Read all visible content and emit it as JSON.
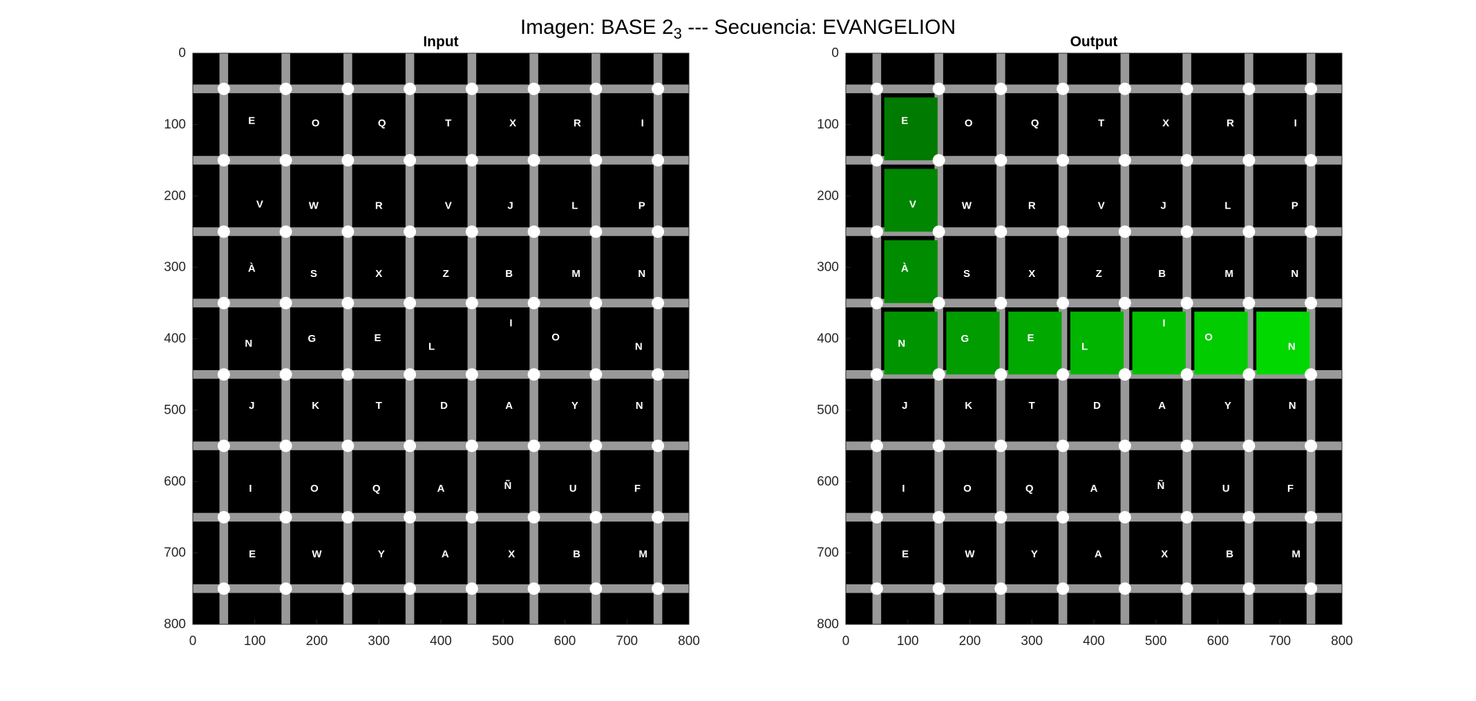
{
  "suptitle": {
    "prefix": "Imagen: BASE 2",
    "subscript": "3",
    "suffix": " --- Secuencia: EVANGELION"
  },
  "chart_data": [
    {
      "type": "image-grid",
      "title": "Input",
      "xlim": [
        0,
        800
      ],
      "ylim": [
        800,
        0
      ],
      "xticks": [
        0,
        100,
        200,
        300,
        400,
        500,
        600,
        700,
        800
      ],
      "yticks": [
        0,
        100,
        200,
        300,
        400,
        500,
        600,
        700,
        800
      ],
      "grid_lines_at": [
        50,
        150,
        250,
        350,
        450,
        550,
        650,
        750
      ],
      "letters": [
        {
          "char": "E",
          "x": 95,
          "y": 95
        },
        {
          "char": "O",
          "x": 198,
          "y": 98
        },
        {
          "char": "Q",
          "x": 305,
          "y": 98
        },
        {
          "char": "T",
          "x": 412,
          "y": 98
        },
        {
          "char": "X",
          "x": 516,
          "y": 98
        },
        {
          "char": "R",
          "x": 620,
          "y": 98
        },
        {
          "char": "I",
          "x": 725,
          "y": 98
        },
        {
          "char": "V",
          "x": 108,
          "y": 212
        },
        {
          "char": "W",
          "x": 195,
          "y": 214
        },
        {
          "char": "R",
          "x": 300,
          "y": 214
        },
        {
          "char": "V",
          "x": 412,
          "y": 214
        },
        {
          "char": "J",
          "x": 512,
          "y": 214
        },
        {
          "char": "L",
          "x": 616,
          "y": 214
        },
        {
          "char": "P",
          "x": 724,
          "y": 214
        },
        {
          "char": "À",
          "x": 95,
          "y": 302
        },
        {
          "char": "S",
          "x": 195,
          "y": 309
        },
        {
          "char": "X",
          "x": 300,
          "y": 309
        },
        {
          "char": "Z",
          "x": 408,
          "y": 309
        },
        {
          "char": "B",
          "x": 510,
          "y": 309
        },
        {
          "char": "M",
          "x": 618,
          "y": 309
        },
        {
          "char": "N",
          "x": 724,
          "y": 309
        },
        {
          "char": "N",
          "x": 90,
          "y": 407
        },
        {
          "char": "G",
          "x": 192,
          "y": 400
        },
        {
          "char": "E",
          "x": 298,
          "y": 399
        },
        {
          "char": "L",
          "x": 385,
          "y": 411
        },
        {
          "char": "I",
          "x": 513,
          "y": 378
        },
        {
          "char": "O",
          "x": 585,
          "y": 398
        },
        {
          "char": "N",
          "x": 719,
          "y": 411
        },
        {
          "char": "J",
          "x": 95,
          "y": 494
        },
        {
          "char": "K",
          "x": 198,
          "y": 494
        },
        {
          "char": "T",
          "x": 300,
          "y": 494
        },
        {
          "char": "D",
          "x": 405,
          "y": 494
        },
        {
          "char": "A",
          "x": 510,
          "y": 494
        },
        {
          "char": "Y",
          "x": 616,
          "y": 494
        },
        {
          "char": "N",
          "x": 720,
          "y": 494
        },
        {
          "char": "I",
          "x": 93,
          "y": 610
        },
        {
          "char": "O",
          "x": 196,
          "y": 610
        },
        {
          "char": "Q",
          "x": 296,
          "y": 610
        },
        {
          "char": "A",
          "x": 400,
          "y": 610
        },
        {
          "char": "Ñ",
          "x": 508,
          "y": 606
        },
        {
          "char": "U",
          "x": 613,
          "y": 610
        },
        {
          "char": "F",
          "x": 717,
          "y": 610
        },
        {
          "char": "E",
          "x": 96,
          "y": 702
        },
        {
          "char": "W",
          "x": 200,
          "y": 702
        },
        {
          "char": "Y",
          "x": 304,
          "y": 702
        },
        {
          "char": "A",
          "x": 407,
          "y": 702
        },
        {
          "char": "X",
          "x": 514,
          "y": 702
        },
        {
          "char": "B",
          "x": 619,
          "y": 702
        },
        {
          "char": "M",
          "x": 726,
          "y": 702
        }
      ],
      "highlights": []
    },
    {
      "type": "image-grid",
      "title": "Output",
      "xlim": [
        0,
        800
      ],
      "ylim": [
        800,
        0
      ],
      "xticks": [
        0,
        100,
        200,
        300,
        400,
        500,
        600,
        700,
        800
      ],
      "yticks": [
        0,
        100,
        200,
        300,
        400,
        500,
        600,
        700,
        800
      ],
      "grid_lines_at": [
        50,
        150,
        250,
        350,
        450,
        550,
        650,
        750
      ],
      "letters": [
        {
          "char": "E",
          "x": 95,
          "y": 95
        },
        {
          "char": "O",
          "x": 198,
          "y": 98
        },
        {
          "char": "Q",
          "x": 305,
          "y": 98
        },
        {
          "char": "T",
          "x": 412,
          "y": 98
        },
        {
          "char": "X",
          "x": 516,
          "y": 98
        },
        {
          "char": "R",
          "x": 620,
          "y": 98
        },
        {
          "char": "I",
          "x": 725,
          "y": 98
        },
        {
          "char": "V",
          "x": 108,
          "y": 212
        },
        {
          "char": "W",
          "x": 195,
          "y": 214
        },
        {
          "char": "R",
          "x": 300,
          "y": 214
        },
        {
          "char": "V",
          "x": 412,
          "y": 214
        },
        {
          "char": "J",
          "x": 512,
          "y": 214
        },
        {
          "char": "L",
          "x": 616,
          "y": 214
        },
        {
          "char": "P",
          "x": 724,
          "y": 214
        },
        {
          "char": "À",
          "x": 95,
          "y": 302
        },
        {
          "char": "S",
          "x": 195,
          "y": 309
        },
        {
          "char": "X",
          "x": 300,
          "y": 309
        },
        {
          "char": "Z",
          "x": 408,
          "y": 309
        },
        {
          "char": "B",
          "x": 510,
          "y": 309
        },
        {
          "char": "M",
          "x": 618,
          "y": 309
        },
        {
          "char": "N",
          "x": 724,
          "y": 309
        },
        {
          "char": "N",
          "x": 90,
          "y": 407
        },
        {
          "char": "G",
          "x": 192,
          "y": 400
        },
        {
          "char": "E",
          "x": 298,
          "y": 399
        },
        {
          "char": "L",
          "x": 385,
          "y": 411
        },
        {
          "char": "I",
          "x": 513,
          "y": 378
        },
        {
          "char": "O",
          "x": 585,
          "y": 398
        },
        {
          "char": "N",
          "x": 719,
          "y": 411
        },
        {
          "char": "J",
          "x": 95,
          "y": 494
        },
        {
          "char": "K",
          "x": 198,
          "y": 494
        },
        {
          "char": "T",
          "x": 300,
          "y": 494
        },
        {
          "char": "D",
          "x": 405,
          "y": 494
        },
        {
          "char": "A",
          "x": 510,
          "y": 494
        },
        {
          "char": "Y",
          "x": 616,
          "y": 494
        },
        {
          "char": "N",
          "x": 720,
          "y": 494
        },
        {
          "char": "I",
          "x": 93,
          "y": 610
        },
        {
          "char": "O",
          "x": 196,
          "y": 610
        },
        {
          "char": "Q",
          "x": 296,
          "y": 610
        },
        {
          "char": "A",
          "x": 400,
          "y": 610
        },
        {
          "char": "Ñ",
          "x": 508,
          "y": 606
        },
        {
          "char": "U",
          "x": 613,
          "y": 610
        },
        {
          "char": "F",
          "x": 717,
          "y": 610
        },
        {
          "char": "E",
          "x": 96,
          "y": 702
        },
        {
          "char": "W",
          "x": 200,
          "y": 702
        },
        {
          "char": "Y",
          "x": 304,
          "y": 702
        },
        {
          "char": "A",
          "x": 407,
          "y": 702
        },
        {
          "char": "X",
          "x": 514,
          "y": 702
        },
        {
          "char": "B",
          "x": 619,
          "y": 702
        },
        {
          "char": "M",
          "x": 726,
          "y": 702
        }
      ],
      "highlights": [
        {
          "char": "E",
          "x0": 62,
          "x1": 148,
          "y0": 62,
          "y1": 150,
          "color": "#007a00"
        },
        {
          "char": "V",
          "x0": 62,
          "x1": 148,
          "y0": 162,
          "y1": 250,
          "color": "#008600"
        },
        {
          "char": "À",
          "x0": 62,
          "x1": 148,
          "y0": 262,
          "y1": 350,
          "color": "#008c00"
        },
        {
          "char": "N",
          "x0": 62,
          "x1": 148,
          "y0": 362,
          "y1": 450,
          "color": "#009400"
        },
        {
          "char": "G",
          "x0": 162,
          "x1": 248,
          "y0": 362,
          "y1": 450,
          "color": "#009c00"
        },
        {
          "char": "E",
          "x0": 262,
          "x1": 348,
          "y0": 362,
          "y1": 450,
          "color": "#00a800"
        },
        {
          "char": "L",
          "x0": 362,
          "x1": 448,
          "y0": 362,
          "y1": 450,
          "color": "#00b400"
        },
        {
          "char": "I",
          "x0": 462,
          "x1": 548,
          "y0": 362,
          "y1": 450,
          "color": "#00c000"
        },
        {
          "char": "O",
          "x0": 562,
          "x1": 648,
          "y0": 362,
          "y1": 450,
          "color": "#00cc00"
        },
        {
          "char": "N",
          "x0": 662,
          "x1": 748,
          "y0": 362,
          "y1": 450,
          "color": "#00d800"
        }
      ]
    }
  ],
  "colors": {
    "background": "#000000",
    "grid": "#999999",
    "node": "#ffffff",
    "letter": "#ffffff"
  }
}
